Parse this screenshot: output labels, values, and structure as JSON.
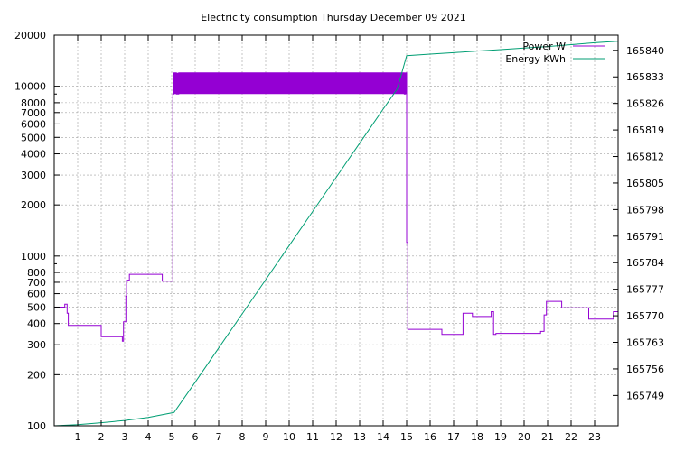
{
  "chart_data": {
    "type": "line",
    "title": "Electricity consumption Thursday December 09 2021",
    "x": {
      "range": [
        0,
        24
      ],
      "ticks": [
        1,
        2,
        3,
        4,
        5,
        6,
        7,
        8,
        9,
        10,
        11,
        12,
        13,
        14,
        15,
        16,
        17,
        18,
        19,
        20,
        21,
        22,
        23
      ],
      "tick_labels": [
        "1",
        "2",
        "3",
        "4",
        "5",
        "6",
        "7",
        "8",
        "9",
        "10",
        "11",
        "12",
        "13",
        "14",
        "15",
        "16",
        "17",
        "18",
        "19",
        "20",
        "21",
        "22",
        "23"
      ]
    },
    "y_left": {
      "scale": "log",
      "range": [
        100,
        20000
      ],
      "ticks": [
        100,
        200,
        300,
        400,
        500,
        600,
        700,
        800,
        1000,
        2000,
        3000,
        4000,
        5000,
        6000,
        7000,
        8000,
        10000,
        20000
      ],
      "tick_labels": [
        "100",
        "200",
        "300",
        "400",
        "500",
        "600",
        "700",
        "800",
        "1000",
        "2000",
        "3000",
        "4000",
        "5000",
        "6000",
        "7000",
        "8000",
        "10000",
        "20000"
      ]
    },
    "y_right": {
      "scale": "linear",
      "range": [
        165741,
        165844
      ],
      "ticks": [
        165749,
        165756,
        165763,
        165770,
        165777,
        165784,
        165791,
        165798,
        165805,
        165812,
        165819,
        165826,
        165833,
        165840
      ],
      "tick_labels": [
        "165749",
        "165756",
        "165763",
        "165770",
        "165777",
        "165784",
        "165791",
        "165798",
        "165805",
        "165812",
        "165819",
        "165826",
        "165833",
        "165840"
      ]
    },
    "grid": true,
    "legend_position": "top-right",
    "series": [
      {
        "name": "Power W",
        "color": "#9400d3",
        "axis": "left",
        "points": [
          [
            0,
            500
          ],
          [
            0.45,
            500
          ],
          [
            0.45,
            520
          ],
          [
            0.55,
            520
          ],
          [
            0.55,
            460
          ],
          [
            0.6,
            460
          ],
          [
            0.6,
            390
          ],
          [
            2.0,
            390
          ],
          [
            2.0,
            335
          ],
          [
            2.9,
            335
          ],
          [
            2.9,
            315
          ],
          [
            2.95,
            315
          ],
          [
            2.95,
            410
          ],
          [
            3.05,
            410
          ],
          [
            3.05,
            580
          ],
          [
            3.08,
            580
          ],
          [
            3.08,
            720
          ],
          [
            3.2,
            720
          ],
          [
            3.2,
            780
          ],
          [
            4.6,
            780
          ],
          [
            4.6,
            710
          ],
          [
            5.05,
            710
          ],
          [
            5.05,
            9000
          ],
          [
            5.1,
            9000
          ],
          [
            5.1,
            12000
          ],
          [
            5.2,
            12000
          ],
          [
            5.2,
            9000
          ],
          [
            5.3,
            9000
          ],
          [
            5.3,
            12000
          ],
          [
            14.9,
            12000
          ],
          [
            14.9,
            9000
          ],
          [
            14.95,
            9000
          ],
          [
            14.95,
            12000
          ],
          [
            15.0,
            12000
          ],
          [
            15.0,
            1200
          ],
          [
            15.05,
            1200
          ],
          [
            15.05,
            370
          ],
          [
            16.5,
            370
          ],
          [
            16.5,
            345
          ],
          [
            17.4,
            345
          ],
          [
            17.4,
            460
          ],
          [
            17.8,
            460
          ],
          [
            17.8,
            440
          ],
          [
            18.6,
            440
          ],
          [
            18.6,
            470
          ],
          [
            18.7,
            470
          ],
          [
            18.7,
            345
          ],
          [
            18.8,
            345
          ],
          [
            18.8,
            350
          ],
          [
            20.7,
            350
          ],
          [
            20.7,
            360
          ],
          [
            20.85,
            360
          ],
          [
            20.85,
            450
          ],
          [
            20.95,
            450
          ],
          [
            20.95,
            540
          ],
          [
            21.6,
            540
          ],
          [
            21.6,
            495
          ],
          [
            22.75,
            495
          ],
          [
            22.75,
            425
          ],
          [
            23.8,
            425
          ],
          [
            23.8,
            470
          ],
          [
            24,
            470
          ]
        ],
        "band": {
          "x_start": 5.05,
          "x_end": 15.0,
          "y_low": 9000,
          "y_high": 12000
        }
      },
      {
        "name": "Energy KWh",
        "color": "#009e73",
        "axis": "right",
        "points": [
          [
            0,
            165741
          ],
          [
            1,
            165741.3
          ],
          [
            2,
            165741.8
          ],
          [
            3,
            165742.4
          ],
          [
            4,
            165743.2
          ],
          [
            5.1,
            165744.5
          ],
          [
            6,
            165752.5
          ],
          [
            7,
            165761.5
          ],
          [
            8,
            165770.5
          ],
          [
            9,
            165779.5
          ],
          [
            10,
            165788.5
          ],
          [
            11,
            165797.5
          ],
          [
            12,
            165806.5
          ],
          [
            13,
            165815.5
          ],
          [
            14,
            165824.5
          ],
          [
            14.6,
            165829.8
          ],
          [
            15.0,
            165838.6
          ],
          [
            16,
            165839
          ],
          [
            17,
            165839.4
          ],
          [
            18,
            165839.8
          ],
          [
            19,
            165840.2
          ],
          [
            20,
            165840.6
          ],
          [
            21,
            165841
          ],
          [
            22,
            165841.5
          ],
          [
            23,
            165842
          ],
          [
            24,
            165842.4
          ]
        ]
      }
    ]
  }
}
